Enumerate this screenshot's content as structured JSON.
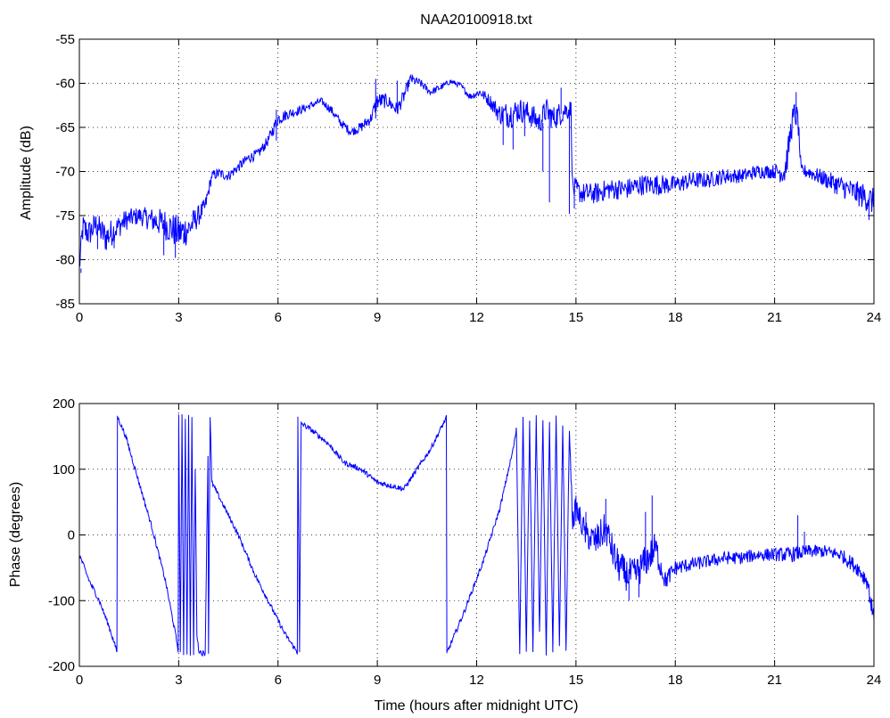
{
  "colors": {
    "line": "#0000ff",
    "axes": "#000000",
    "grid": "#000000",
    "background": "#ffffff"
  },
  "chart_data": [
    {
      "type": "line",
      "title": "NAA20100918.txt",
      "xlabel": "",
      "ylabel": "Amplitude (dB)",
      "xlim": [
        0,
        24
      ],
      "ylim": [
        -85,
        -55
      ],
      "xticks": [
        0,
        3,
        6,
        9,
        12,
        15,
        18,
        21,
        24
      ],
      "yticks": [
        -85,
        -80,
        -75,
        -70,
        -65,
        -60,
        -55
      ],
      "xtick_labels": [
        "0",
        "3",
        "6",
        "9",
        "12",
        "15",
        "18",
        "21",
        "24"
      ],
      "ytick_labels": [
        "-85",
        "-80",
        "-75",
        "-70",
        "-65",
        "-60",
        "-55"
      ],
      "grid": true,
      "series": [
        {
          "x": [
            0,
            0.1,
            0.3,
            0.5,
            0.8,
            1.1,
            1.4,
            1.8,
            2.2,
            2.6,
            3.0,
            3.3,
            3.6,
            3.8,
            4.0,
            4.2,
            4.5,
            4.8,
            5.1,
            5.4,
            5.7,
            6.0,
            6.3,
            6.7,
            7.0,
            7.3,
            7.6,
            7.9,
            8.2,
            8.5,
            8.8,
            9.0,
            9.3,
            9.6,
            9.8,
            10.0,
            10.3,
            10.6,
            10.9,
            11.2,
            11.5,
            11.8,
            12.1,
            12.4,
            12.7,
            13.0,
            13.3,
            13.6,
            13.9,
            14.1,
            14.3,
            14.5,
            14.7,
            14.85,
            14.9,
            15.2,
            15.6,
            16.0,
            16.5,
            17.0,
            17.5,
            18.0,
            18.5,
            19.0,
            19.5,
            20.0,
            20.5,
            21.0,
            21.3,
            21.4,
            21.5,
            21.6,
            21.7,
            21.8,
            22.0,
            22.3,
            22.6,
            22.9,
            23.2,
            23.5,
            23.8,
            24.0
          ],
          "y": [
            -81,
            -76.5,
            -77,
            -76,
            -77.5,
            -76.5,
            -75.5,
            -75,
            -75.5,
            -76,
            -77,
            -76.5,
            -75,
            -74,
            -70.5,
            -70.2,
            -70.5,
            -69.5,
            -68.5,
            -68,
            -66.5,
            -64,
            -63.5,
            -63,
            -62.5,
            -62,
            -63,
            -64.5,
            -65.5,
            -65,
            -64,
            -62,
            -62,
            -63,
            -61.5,
            -59.5,
            -60,
            -61,
            -60.5,
            -59.8,
            -60.2,
            -61.5,
            -61,
            -62,
            -63.5,
            -63.5,
            -63,
            -63.5,
            -64.5,
            -63,
            -64,
            -63.5,
            -63,
            -63,
            -72,
            -72.5,
            -72.5,
            -72,
            -72,
            -71.5,
            -71.5,
            -71.5,
            -71,
            -71,
            -70.5,
            -70.5,
            -70,
            -70,
            -70,
            -68,
            -65,
            -63.5,
            -64,
            -70,
            -70,
            -70.5,
            -71,
            -71.5,
            -72,
            -72.5,
            -73,
            -73.5
          ],
          "noise": [
            1.2,
            1.8,
            1.6,
            1.4,
            1.8,
            1.4,
            1.2,
            1.0,
            1.4,
            1.8,
            2.0,
            1.8,
            1.2,
            1.0,
            0.6,
            0.6,
            0.6,
            0.6,
            0.6,
            0.6,
            0.6,
            0.8,
            0.6,
            0.5,
            0.4,
            0.4,
            0.5,
            0.5,
            0.5,
            0.6,
            0.7,
            1.0,
            0.8,
            0.8,
            0.8,
            0.5,
            0.5,
            0.4,
            0.4,
            0.3,
            0.3,
            0.4,
            0.5,
            0.8,
            1.2,
            1.6,
            1.4,
            1.4,
            1.4,
            1.4,
            1.4,
            1.4,
            1.2,
            1.2,
            1.4,
            1.2,
            1.2,
            1.2,
            1.2,
            1.2,
            1.2,
            1.0,
            1.0,
            0.9,
            0.9,
            0.8,
            0.8,
            0.8,
            1.6,
            1.6,
            1.6,
            1.6,
            1.2,
            0.8,
            0.8,
            0.9,
            1.0,
            1.2,
            1.3,
            1.4,
            1.6,
            1.6
          ],
          "spikes": [
            {
              "x": 0.05,
              "y": -81.5
            },
            {
              "x": 0.55,
              "y": -78.8
            },
            {
              "x": 1.05,
              "y": -78.7
            },
            {
              "x": 2.55,
              "y": -79.5
            },
            {
              "x": 2.9,
              "y": -79.8
            },
            {
              "x": 3.15,
              "y": -78.2
            },
            {
              "x": 5.95,
              "y": -63
            },
            {
              "x": 8.95,
              "y": -59.5
            },
            {
              "x": 9.6,
              "y": -59.7
            },
            {
              "x": 10.05,
              "y": -59
            },
            {
              "x": 12.8,
              "y": -67
            },
            {
              "x": 13.1,
              "y": -67.5
            },
            {
              "x": 13.45,
              "y": -66
            },
            {
              "x": 14.0,
              "y": -70
            },
            {
              "x": 14.2,
              "y": -73.5
            },
            {
              "x": 14.25,
              "y": -65
            },
            {
              "x": 14.55,
              "y": -60.5
            },
            {
              "x": 14.8,
              "y": -74.8
            },
            {
              "x": 14.95,
              "y": -74.2
            },
            {
              "x": 21.65,
              "y": -61
            },
            {
              "x": 23.85,
              "y": -75.5
            },
            {
              "x": 24.0,
              "y": -76
            }
          ]
        }
      ]
    },
    {
      "type": "line",
      "title": "",
      "xlabel": "Time (hours after midnight UTC)",
      "ylabel": "Phase (degrees)",
      "xlim": [
        0,
        24
      ],
      "ylim": [
        -200,
        200
      ],
      "xticks": [
        0,
        3,
        6,
        9,
        12,
        15,
        18,
        21,
        24
      ],
      "yticks": [
        -200,
        -100,
        0,
        100,
        200
      ],
      "xtick_labels": [
        "0",
        "3",
        "6",
        "9",
        "12",
        "15",
        "18",
        "21",
        "24"
      ],
      "ytick_labels": [
        "-200",
        "-100",
        "0",
        "100",
        "200"
      ],
      "grid": true,
      "series": [
        {
          "x": [
            0,
            0.3,
            0.6,
            0.9,
            1.15,
            1.15,
            1.4,
            1.8,
            2.2,
            2.6,
            2.9,
            3.0,
            3.0,
            3.05,
            3.1,
            3.15,
            3.2,
            3.25,
            3.3,
            3.35,
            3.4,
            3.45,
            3.5,
            3.55,
            3.6,
            3.7,
            3.8,
            3.9,
            3.9,
            3.95,
            4.0,
            4.3,
            4.8,
            5.3,
            5.8,
            6.2,
            6.6,
            6.6,
            6.65,
            6.7,
            6.7,
            7.0,
            7.5,
            8.0,
            8.5,
            9.0,
            9.4,
            9.8,
            10.2,
            10.6,
            11.1,
            11.1,
            11.6,
            12.2,
            12.7,
            13.1,
            13.2,
            13.3,
            13.4,
            13.5,
            13.6,
            13.7,
            13.8,
            13.9,
            14.0,
            14.1,
            14.2,
            14.3,
            14.4,
            14.5,
            14.6,
            14.7,
            14.8,
            14.9,
            15.0,
            15.3,
            15.6,
            15.9,
            16.2,
            16.5,
            16.8,
            17.1,
            17.4,
            17.7,
            18.0,
            18.5,
            19.0,
            19.5,
            20.0,
            20.5,
            21.0,
            21.5,
            22.0,
            22.5,
            23.0,
            23.5,
            23.8,
            24.0
          ],
          "y": [
            -30,
            -70,
            -100,
            -140,
            -180,
            180,
            150,
            80,
            10,
            -70,
            -150,
            -180,
            180,
            -180,
            180,
            -180,
            180,
            -180,
            180,
            -180,
            180,
            -180,
            100,
            -150,
            -175,
            -180,
            -180,
            180,
            -180,
            180,
            80,
            50,
            0,
            -60,
            -110,
            -150,
            -180,
            180,
            -180,
            180,
            170,
            160,
            140,
            110,
            100,
            80,
            75,
            70,
            100,
            130,
            180,
            -180,
            -120,
            -40,
            40,
            130,
            160,
            -180,
            180,
            -180,
            170,
            -180,
            180,
            -150,
            175,
            -180,
            170,
            -180,
            180,
            -170,
            170,
            -180,
            160,
            20,
            40,
            0,
            -10,
            10,
            -40,
            -60,
            -60,
            -40,
            -20,
            -70,
            -50,
            -45,
            -40,
            -35,
            -35,
            -30,
            -30,
            -30,
            -25,
            -25,
            -30,
            -50,
            -70,
            -130
          ],
          "noise": [
            4,
            4,
            4,
            4,
            4,
            4,
            4,
            4,
            4,
            4,
            4,
            4,
            4,
            4,
            4,
            4,
            4,
            4,
            4,
            4,
            4,
            4,
            4,
            4,
            4,
            4,
            4,
            4,
            4,
            4,
            4,
            4,
            4,
            4,
            4,
            4,
            4,
            4,
            4,
            4,
            4,
            4,
            4,
            4,
            4,
            4,
            4,
            4,
            4,
            4,
            4,
            4,
            4,
            4,
            4,
            4,
            4,
            4,
            4,
            4,
            4,
            4,
            4,
            4,
            4,
            4,
            4,
            4,
            4,
            4,
            4,
            4,
            4,
            15,
            20,
            20,
            25,
            25,
            25,
            25,
            25,
            25,
            25,
            15,
            12,
            10,
            10,
            10,
            10,
            10,
            10,
            12,
            10,
            10,
            10,
            12,
            14,
            14
          ],
          "spikes": [
            {
              "x": 15.0,
              "y": 60
            },
            {
              "x": 15.3,
              "y": 35
            },
            {
              "x": 15.9,
              "y": 55
            },
            {
              "x": 16.3,
              "y": -70
            },
            {
              "x": 16.6,
              "y": -100
            },
            {
              "x": 16.9,
              "y": -95
            },
            {
              "x": 17.1,
              "y": 35
            },
            {
              "x": 17.3,
              "y": 60
            },
            {
              "x": 21.7,
              "y": 30
            },
            {
              "x": 21.9,
              "y": 5
            },
            {
              "x": 24.0,
              "y": -135
            }
          ]
        }
      ]
    }
  ]
}
